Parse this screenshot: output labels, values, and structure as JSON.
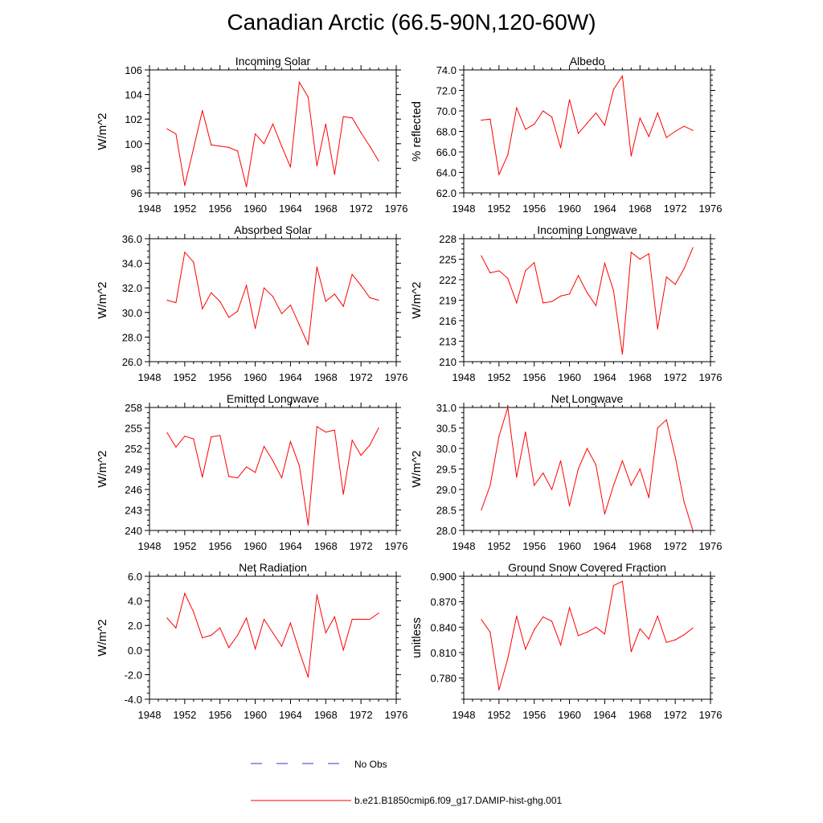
{
  "page_title": "Canadian Arctic (66.5-90N,120-60W)",
  "colors": {
    "model": "#ff0000",
    "obs": "#3333cc",
    "axis": "#000000"
  },
  "legend": {
    "obs_label": "No Obs",
    "model_label": "b.e21.B1850cmip6.f09_g17.DAMIP-hist-ghg.001"
  },
  "chart_data": [
    {
      "type": "line",
      "title": "Incoming Solar",
      "ylabel": "W/m^2",
      "xlim": [
        1948,
        1976
      ],
      "ylim": [
        96,
        106
      ],
      "x_ticks": [
        "1948",
        "1952",
        "1956",
        "1960",
        "1964",
        "1968",
        "1972",
        "1976"
      ],
      "y_ticks": [
        "96",
        "98",
        "100",
        "102",
        "104",
        "106"
      ],
      "x": [
        1950,
        1951,
        1952,
        1953,
        1954,
        1955,
        1956,
        1957,
        1958,
        1959,
        1960,
        1961,
        1962,
        1963,
        1964,
        1965,
        1966,
        1967,
        1968,
        1969,
        1970,
        1971,
        1972,
        1973,
        1974
      ],
      "values": [
        101.2,
        100.8,
        96.6,
        99.6,
        102.7,
        99.9,
        99.8,
        99.7,
        99.4,
        96.5,
        100.8,
        100.0,
        101.6,
        99.8,
        98.1,
        105.0,
        103.8,
        98.2,
        101.6,
        97.5,
        102.2,
        102.1,
        100.9,
        99.8,
        98.6
      ]
    },
    {
      "type": "line",
      "title": "Albedo",
      "ylabel": "% reflected",
      "xlim": [
        1948,
        1976
      ],
      "ylim": [
        62,
        74
      ],
      "x_ticks": [
        "1948",
        "1952",
        "1956",
        "1960",
        "1964",
        "1968",
        "1972",
        "1976"
      ],
      "y_ticks": [
        "62.0",
        "64.0",
        "66.0",
        "68.0",
        "70.0",
        "72.0",
        "74.0"
      ],
      "x": [
        1950,
        1951,
        1952,
        1953,
        1954,
        1955,
        1956,
        1957,
        1958,
        1959,
        1960,
        1961,
        1962,
        1963,
        1964,
        1965,
        1966,
        1967,
        1968,
        1969,
        1970,
        1971,
        1972,
        1973,
        1974
      ],
      "values": [
        69.1,
        69.2,
        63.8,
        65.7,
        70.3,
        68.2,
        68.7,
        70.0,
        69.4,
        66.4,
        71.1,
        67.8,
        68.8,
        69.8,
        68.6,
        72.1,
        73.4,
        65.6,
        69.3,
        67.5,
        69.8,
        67.4,
        68.0,
        68.5,
        68.1
      ]
    },
    {
      "type": "line",
      "title": "Absorbed Solar",
      "ylabel": "W/m^2",
      "xlim": [
        1948,
        1976
      ],
      "ylim": [
        26,
        36
      ],
      "x_ticks": [
        "1948",
        "1952",
        "1956",
        "1960",
        "1964",
        "1968",
        "1972",
        "1976"
      ],
      "y_ticks": [
        "26.0",
        "28.0",
        "30.0",
        "32.0",
        "34.0",
        "36.0"
      ],
      "x": [
        1950,
        1951,
        1952,
        1953,
        1954,
        1955,
        1956,
        1957,
        1958,
        1959,
        1960,
        1961,
        1962,
        1963,
        1964,
        1965,
        1966,
        1967,
        1968,
        1969,
        1970,
        1971,
        1972,
        1973,
        1974
      ],
      "values": [
        31.0,
        30.8,
        34.9,
        34.1,
        30.3,
        31.6,
        30.9,
        29.6,
        30.1,
        32.2,
        28.7,
        32.0,
        31.3,
        29.9,
        30.6,
        29.0,
        27.4,
        33.7,
        30.9,
        31.5,
        30.5,
        33.1,
        32.2,
        31.2,
        31.0
      ]
    },
    {
      "type": "line",
      "title": "Incoming Longwave",
      "ylabel": "W/m^2",
      "xlim": [
        1948,
        1976
      ],
      "ylim": [
        210,
        228
      ],
      "x_ticks": [
        "1948",
        "1952",
        "1956",
        "1960",
        "1964",
        "1968",
        "1972",
        "1976"
      ],
      "y_ticks": [
        "210",
        "213",
        "216",
        "219",
        "222",
        "225",
        "228"
      ],
      "x": [
        1950,
        1951,
        1952,
        1953,
        1954,
        1955,
        1956,
        1957,
        1958,
        1959,
        1960,
        1961,
        1962,
        1963,
        1964,
        1965,
        1966,
        1967,
        1968,
        1969,
        1970,
        1971,
        1972,
        1973,
        1974
      ],
      "values": [
        225.5,
        223.0,
        223.3,
        222.2,
        218.6,
        223.3,
        224.5,
        218.6,
        218.8,
        219.6,
        219.9,
        222.6,
        220.1,
        218.2,
        224.4,
        220.4,
        211.1,
        226.0,
        225.0,
        225.8,
        214.8,
        222.4,
        221.3,
        223.6,
        226.7
      ]
    },
    {
      "type": "line",
      "title": "Emitted Longwave",
      "ylabel": "W/m^2",
      "xlim": [
        1948,
        1976
      ],
      "ylim": [
        240,
        258
      ],
      "x_ticks": [
        "1948",
        "1952",
        "1956",
        "1960",
        "1964",
        "1968",
        "1972",
        "1976"
      ],
      "y_ticks": [
        "240",
        "243",
        "246",
        "249",
        "252",
        "255",
        "258"
      ],
      "x": [
        1950,
        1951,
        1952,
        1953,
        1954,
        1955,
        1956,
        1957,
        1958,
        1959,
        1960,
        1961,
        1962,
        1963,
        1964,
        1965,
        1966,
        1967,
        1968,
        1969,
        1970,
        1971,
        1972,
        1973,
        1974
      ],
      "values": [
        254.3,
        252.2,
        253.8,
        253.4,
        247.8,
        253.7,
        253.9,
        247.9,
        247.7,
        249.3,
        248.5,
        252.3,
        250.2,
        247.7,
        253.0,
        249.5,
        240.8,
        255.2,
        254.4,
        254.7,
        245.3,
        253.2,
        251.0,
        252.5,
        255.0
      ]
    },
    {
      "type": "line",
      "title": "Net Longwave",
      "ylabel": "W/m^2",
      "xlim": [
        1948,
        1976
      ],
      "ylim": [
        28,
        31
      ],
      "x_ticks": [
        "1948",
        "1952",
        "1956",
        "1960",
        "1964",
        "1968",
        "1972",
        "1976"
      ],
      "y_ticks": [
        "28.0",
        "28.5",
        "29.0",
        "29.5",
        "30.0",
        "30.5",
        "31.0"
      ],
      "x": [
        1950,
        1951,
        1952,
        1953,
        1954,
        1955,
        1956,
        1957,
        1958,
        1959,
        1960,
        1961,
        1962,
        1963,
        1964,
        1965,
        1966,
        1967,
        1968,
        1969,
        1970,
        1971,
        1972,
        1973,
        1974
      ],
      "values": [
        28.5,
        29.1,
        30.3,
        31.0,
        29.3,
        30.4,
        29.1,
        29.4,
        29.0,
        29.7,
        28.6,
        29.5,
        30.0,
        29.6,
        28.4,
        29.1,
        29.7,
        29.1,
        29.5,
        28.8,
        30.5,
        30.7,
        29.8,
        28.7,
        28.0
      ]
    },
    {
      "type": "line",
      "title": "Net Radiation",
      "ylabel": "W/m^2",
      "xlim": [
        1948,
        1976
      ],
      "ylim": [
        -4,
        6
      ],
      "x_ticks": [
        "1948",
        "1952",
        "1956",
        "1960",
        "1964",
        "1968",
        "1972",
        "1976"
      ],
      "y_ticks": [
        "-4.0",
        "-2.0",
        "0.0",
        "2.0",
        "4.0",
        "6.0"
      ],
      "x": [
        1950,
        1951,
        1952,
        1953,
        1954,
        1955,
        1956,
        1957,
        1958,
        1959,
        1960,
        1961,
        1962,
        1963,
        1964,
        1965,
        1966,
        1967,
        1968,
        1969,
        1970,
        1971,
        1972,
        1973,
        1974
      ],
      "values": [
        2.6,
        1.8,
        4.6,
        3.1,
        1.0,
        1.2,
        1.8,
        0.2,
        1.2,
        2.6,
        0.1,
        2.5,
        1.4,
        0.3,
        2.2,
        -0.1,
        -2.2,
        4.5,
        1.4,
        2.7,
        0.0,
        2.5,
        2.5,
        2.5,
        3.0
      ]
    },
    {
      "type": "line",
      "title": "Ground Snow Covered Fraction",
      "ylabel": "unitless",
      "xlim": [
        1948,
        1976
      ],
      "ylim": [
        0.755,
        0.9
      ],
      "x_ticks": [
        "1948",
        "1952",
        "1956",
        "1960",
        "1964",
        "1968",
        "1972",
        "1976"
      ],
      "y_ticks": [
        "0.780",
        "0.810",
        "0.840",
        "0.870",
        "0.900"
      ],
      "y_tick_values": [
        0.78,
        0.81,
        0.84,
        0.87,
        0.9
      ],
      "x": [
        1950,
        1951,
        1952,
        1953,
        1954,
        1955,
        1956,
        1957,
        1958,
        1959,
        1960,
        1961,
        1962,
        1963,
        1964,
        1965,
        1966,
        1967,
        1968,
        1969,
        1970,
        1971,
        1972,
        1973,
        1974
      ],
      "values": [
        0.849,
        0.834,
        0.766,
        0.803,
        0.853,
        0.814,
        0.837,
        0.852,
        0.847,
        0.819,
        0.863,
        0.83,
        0.834,
        0.84,
        0.832,
        0.889,
        0.894,
        0.811,
        0.838,
        0.826,
        0.853,
        0.822,
        0.825,
        0.831,
        0.839
      ]
    }
  ]
}
